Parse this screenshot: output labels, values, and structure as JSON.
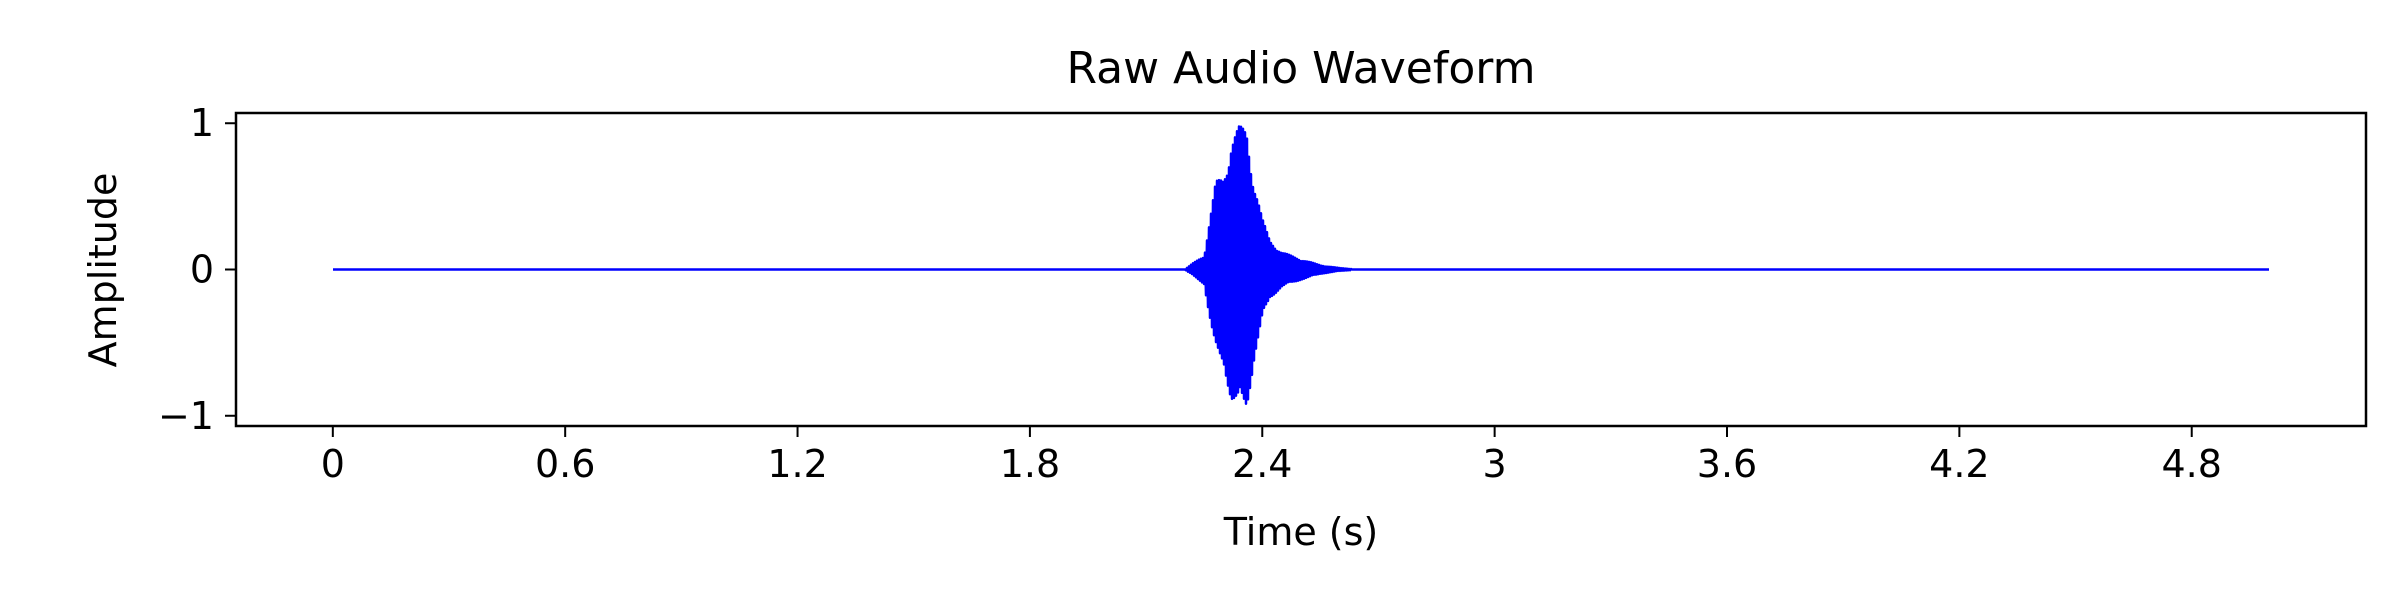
{
  "chart_data": {
    "type": "line",
    "title": "Raw Audio Waveform",
    "xlabel": "Time (s)",
    "ylabel": "Amplitude",
    "x_ticks": [
      "0",
      "0.6",
      "1.2",
      "1.8",
      "2.4",
      "3",
      "3.6",
      "4.2",
      "4.8"
    ],
    "y_ticks": [
      "1",
      "0",
      "−1"
    ],
    "xlim": [
      -0.25,
      5.25
    ],
    "ylim": [
      -1.07,
      1.07
    ],
    "grid": false,
    "legend": "none",
    "series_color": "#0000ff",
    "series": [
      {
        "x": [
          0,
          2.2,
          2.25,
          2.28,
          2.3,
          2.32,
          2.34,
          2.36,
          2.38,
          2.4,
          2.42,
          2.45,
          2.5,
          2.55,
          2.6,
          2.65,
          5.0
        ],
        "y_max": [
          0,
          0.0,
          0.1,
          0.6,
          0.65,
          0.9,
          0.98,
          0.97,
          0.6,
          0.35,
          0.2,
          0.12,
          0.07,
          0.03,
          0.01,
          0.0,
          0
        ],
        "y_min": [
          0,
          0.0,
          -0.1,
          -0.6,
          -0.65,
          -0.9,
          -0.98,
          -0.97,
          -0.6,
          -0.35,
          -0.2,
          -0.12,
          -0.07,
          -0.03,
          -0.01,
          0.0,
          0
        ]
      }
    ]
  }
}
